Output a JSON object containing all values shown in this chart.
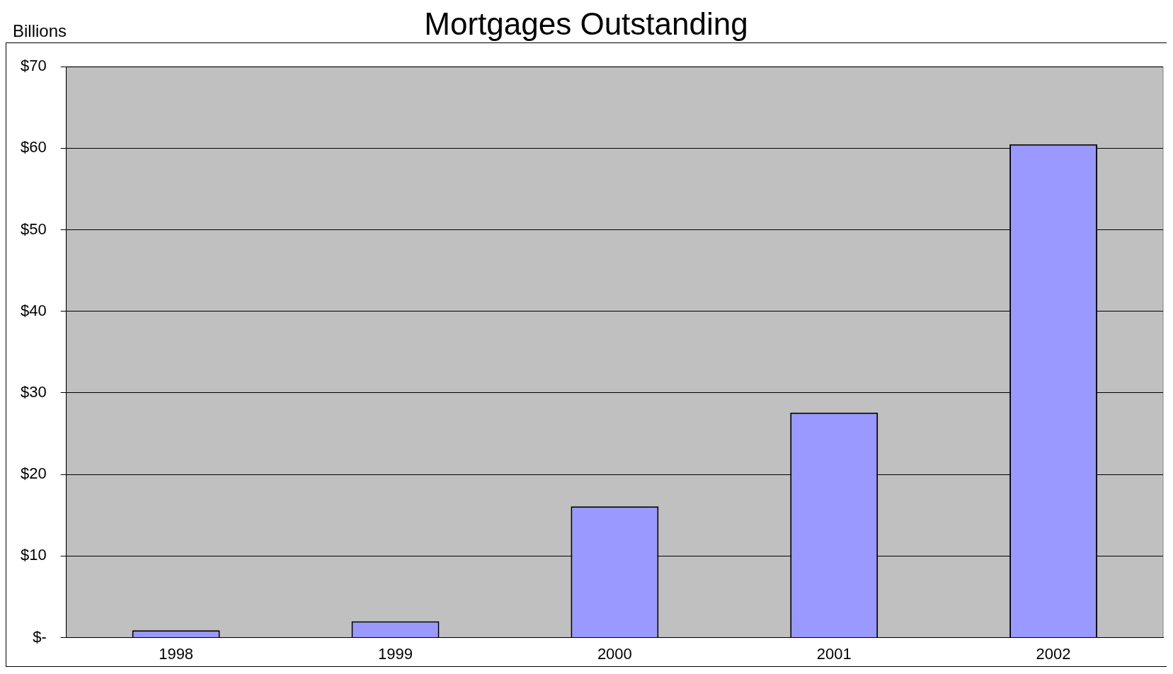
{
  "chart_data": {
    "type": "bar",
    "title": "Mortgages Outstanding",
    "ylabel": "Billions",
    "categories": [
      "1998",
      "1999",
      "2000",
      "2001",
      "2002"
    ],
    "values": [
      0.9,
      2.0,
      16.1,
      27.6,
      60.5
    ],
    "color": "#9999ff",
    "ylim": [
      0,
      70
    ],
    "yticks": [
      {
        "value": 0,
        "label": "$-"
      },
      {
        "value": 10,
        "label": "$10"
      },
      {
        "value": 20,
        "label": "$20"
      },
      {
        "value": 30,
        "label": "$30"
      },
      {
        "value": 40,
        "label": "$40"
      },
      {
        "value": 50,
        "label": "$50"
      },
      {
        "value": 60,
        "label": "$60"
      },
      {
        "value": 70,
        "label": "$70"
      }
    ],
    "grid": "y",
    "legend": false
  }
}
